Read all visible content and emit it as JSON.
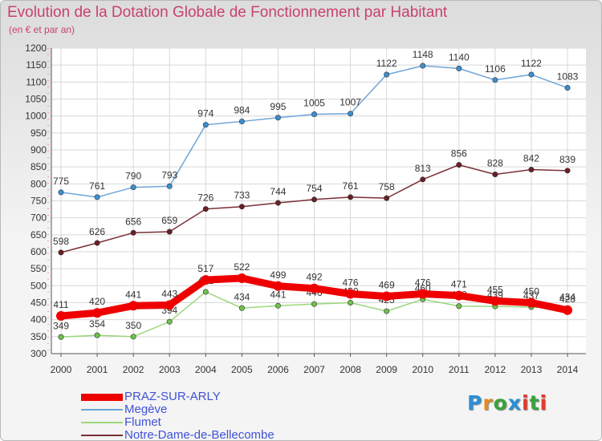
{
  "title": "Evolution de la Dotation Globale de Fonctionnement par Habitant",
  "subtitle": "(en € et par an)",
  "logo": {
    "text": "Proxiti",
    "colors": [
      "#2b8fd6",
      "#e58b1f",
      "#3aa23a",
      "#2b8fd6",
      "#e5392c",
      "#3aa23a",
      "#e5392c"
    ]
  },
  "chart_data": {
    "type": "line",
    "x": [
      "2000",
      "2001",
      "2002",
      "2003",
      "2004",
      "2005",
      "2006",
      "2007",
      "2008",
      "2009",
      "2010",
      "2011",
      "2012",
      "2013",
      "2014"
    ],
    "ylim": [
      300,
      1200
    ],
    "yticks": [
      300,
      350,
      400,
      450,
      500,
      550,
      600,
      650,
      700,
      750,
      800,
      850,
      900,
      950,
      1000,
      1050,
      1100,
      1150,
      1200
    ],
    "grid": true,
    "legend_position": "bottom-left",
    "series": [
      {
        "name": "Megève",
        "color": "#6fa5d8",
        "marker": "#3b8fd0",
        "values": [
          775,
          761,
          790,
          793,
          974,
          984,
          995,
          1005,
          1007,
          1122,
          1148,
          1140,
          1106,
          1122,
          1083
        ]
      },
      {
        "name": "Notre-Dame-de-Bellecombe",
        "color": "#7b2f36",
        "marker": "#6a1f26",
        "values": [
          598,
          626,
          656,
          659,
          726,
          733,
          744,
          754,
          761,
          758,
          813,
          856,
          828,
          842,
          839
        ]
      },
      {
        "name": "Flumet",
        "color": "#9bd77c",
        "marker": "#6dc24a",
        "values": [
          349,
          354,
          350,
          394,
          482,
          434,
          441,
          446,
          450,
          425,
          460,
          440,
          439,
          437,
          434
        ]
      },
      {
        "name": "PRAZ-SUR-ARLY",
        "color": "#ee0000",
        "marker": "#ee0000",
        "values": [
          411,
          420,
          441,
          443,
          517,
          522,
          499,
          492,
          476,
          469,
          476,
          471,
          455,
          450,
          428
        ]
      }
    ],
    "legend": [
      {
        "name": "PRAZ-SUR-ARLY",
        "color": "#ee0000"
      },
      {
        "name": "Megève",
        "color": "#6fa5d8"
      },
      {
        "name": "Flumet",
        "color": "#9bd77c"
      },
      {
        "name": "Notre-Dame-de-Bellecombe",
        "color": "#7b2f36"
      }
    ]
  }
}
